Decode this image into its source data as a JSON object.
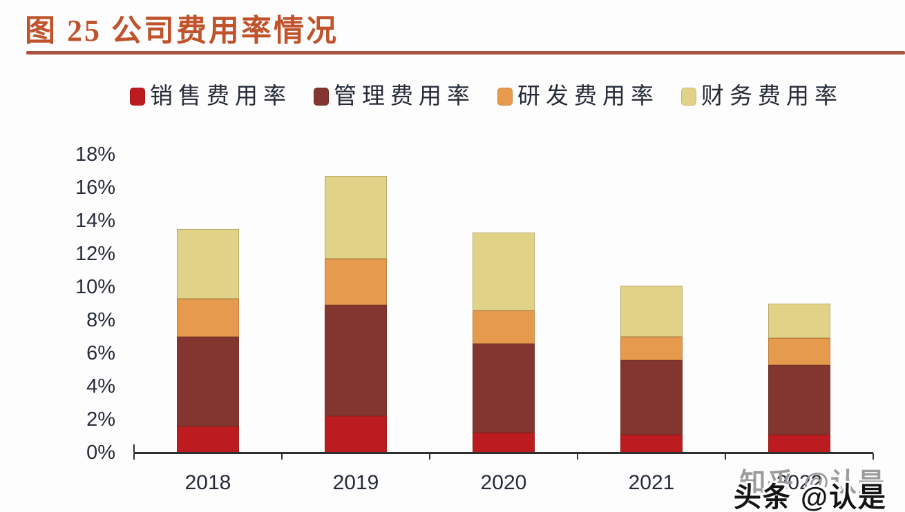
{
  "figure": {
    "title": "图 25 公司费用率情况"
  },
  "watermarks": {
    "zhihu": "知乎 @认是",
    "toutiao": "头条 @认是"
  },
  "chart_data": {
    "type": "bar",
    "stacked": true,
    "title": "图 25 公司费用率情况",
    "categories": [
      "2018",
      "2019",
      "2020",
      "2021",
      "2022"
    ],
    "series": [
      {
        "key": "sales-expense-ratio",
        "name": "销售费用率",
        "color": "#bc1b20",
        "values": [
          1.6,
          2.2,
          1.2,
          1.1,
          1.1
        ]
      },
      {
        "key": "management-expense-ratio",
        "name": "管理费用率",
        "color": "#833630",
        "values": [
          5.4,
          6.7,
          5.4,
          4.5,
          4.2
        ]
      },
      {
        "key": "rd-expense-ratio",
        "name": "研发费用率",
        "color": "#e69a4d",
        "values": [
          2.3,
          2.8,
          2.0,
          1.4,
          1.6
        ]
      },
      {
        "key": "finance-expense-ratio",
        "name": "财务费用率",
        "color": "#e0d287",
        "values": [
          4.2,
          5.0,
          4.7,
          3.1,
          2.1
        ]
      }
    ],
    "totals": [
      13.5,
      16.7,
      13.3,
      10.1,
      9.0
    ],
    "xlabel": "",
    "ylabel": "",
    "ylim": [
      0,
      18
    ],
    "ytick_step": 2,
    "ytick_labels": [
      "0%",
      "2%",
      "4%",
      "6%",
      "8%",
      "10%",
      "12%",
      "14%",
      "16%",
      "18%"
    ],
    "grid": false,
    "legend_position": "top"
  },
  "colors": {
    "title": "#c0532c",
    "title_underline": "#a9543e",
    "axis_text": "#262b38",
    "axis_line": "#2f2f2f",
    "watermark_gray": "#9b9b9b",
    "watermark_black": "#141414",
    "background": "#fdfdfd"
  }
}
